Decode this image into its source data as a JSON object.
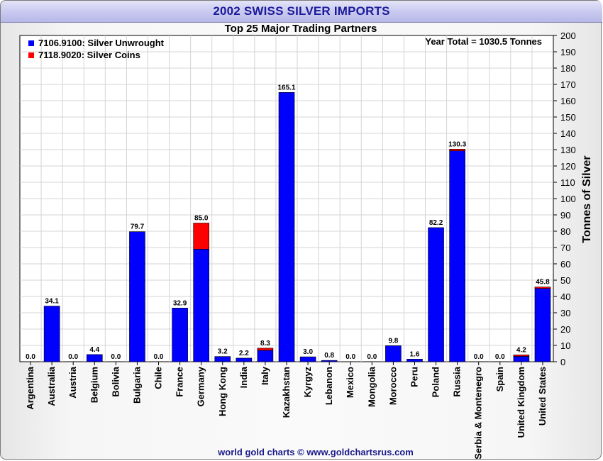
{
  "header": {
    "title": "2002 SWISS SILVER IMPORTS",
    "footer": "world gold charts © www.goldchartsrus.com"
  },
  "colors": {
    "unwrought": "#0000ff",
    "coins": "#ff0000",
    "title_text": "#1a1a9a"
  },
  "chart_data": {
    "type": "bar",
    "stacked": true,
    "title": "Top 25 Major Trading Partners",
    "annotation": "Year Total = 1030.5 Tonnes",
    "ylabel": "Tonnes of Silver",
    "ylim": [
      0,
      200
    ],
    "y_ticks": [
      0,
      10,
      20,
      30,
      40,
      50,
      60,
      70,
      80,
      90,
      100,
      110,
      120,
      130,
      140,
      150,
      160,
      170,
      180,
      190,
      200
    ],
    "y_axis_side": "right",
    "grid": true,
    "legend_position": "top-left",
    "categories": [
      "Argentina",
      "Australia",
      "Austria",
      "Belgium",
      "Bolivia",
      "Bulgaria",
      "Chile",
      "France",
      "Germany",
      "Hong Kong",
      "India",
      "Italy",
      "Kazakhstan",
      "Kyrgyz",
      "Lebanon",
      "Mexico",
      "Mongolia",
      "Morocco",
      "Peru",
      "Poland",
      "Russia",
      "Serbia & Montenegro",
      "Spain",
      "United Kingdom",
      "United States"
    ],
    "totals": [
      "0.0",
      "34.1",
      "0.0",
      "4.4",
      "0.0",
      "79.7",
      "0.0",
      "32.9",
      "85.0",
      "3.2",
      "2.2",
      "8.3",
      "165.1",
      "3.0",
      "0.8",
      "0.0",
      "0.0",
      "9.8",
      "1.6",
      "82.2",
      "130.3",
      "0.0",
      "0.0",
      "4.2",
      "45.8"
    ],
    "series": [
      {
        "name": "7106.9100: Silver Unwrought",
        "color": "#0000ff",
        "values": [
          0,
          34.1,
          0,
          4.4,
          0,
          79.7,
          0,
          32.9,
          69.0,
          3.2,
          2.2,
          7.0,
          165.1,
          3.0,
          0.8,
          0,
          0,
          9.8,
          1.6,
          82.2,
          129.3,
          0,
          0,
          3.3,
          44.9
        ]
      },
      {
        "name": "7118.9020: Silver Coins",
        "color": "#ff0000",
        "values": [
          0,
          0,
          0,
          0,
          0,
          0,
          0,
          0,
          16.0,
          0,
          0,
          1.3,
          0,
          0,
          0,
          0,
          0,
          0,
          0,
          0,
          1.0,
          0,
          0,
          0.9,
          0.9
        ]
      }
    ]
  }
}
